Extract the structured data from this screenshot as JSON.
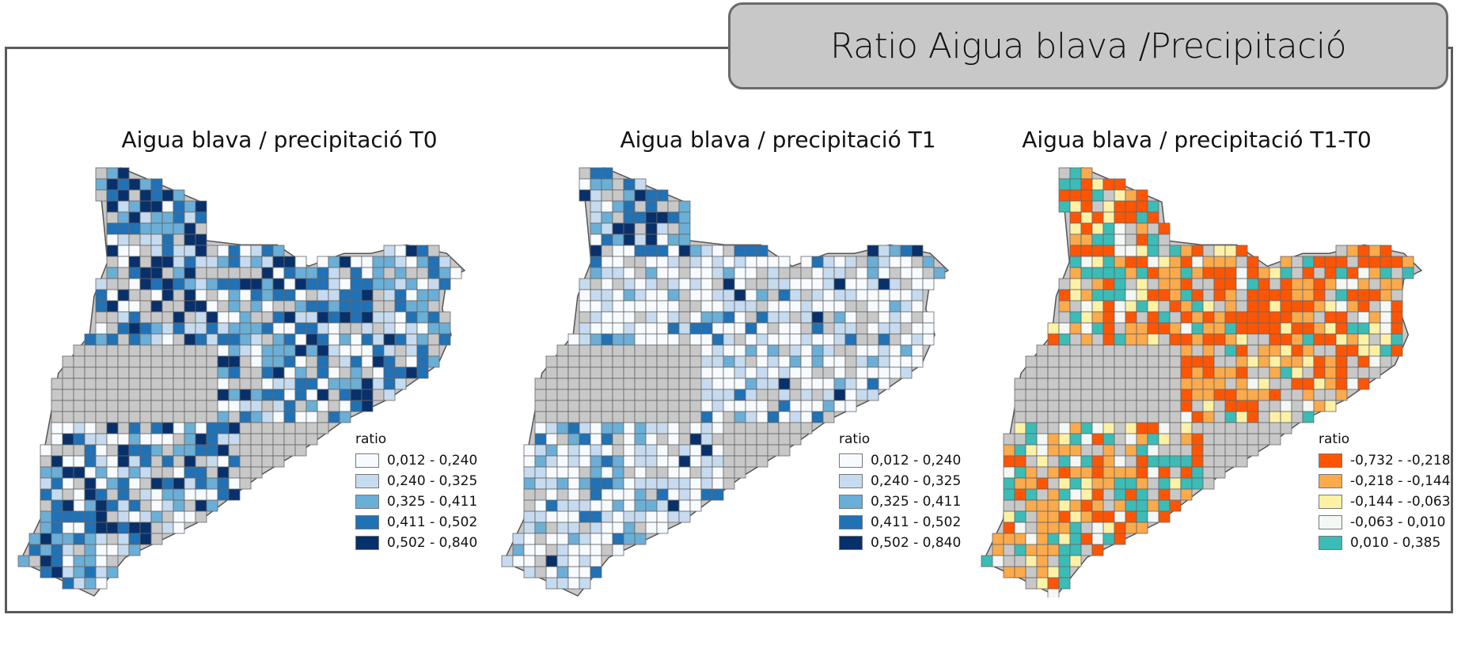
{
  "header": {
    "title": "Ratio Aigua blava /Precipitació"
  },
  "nodata_color": "#c8c8c8",
  "maps": [
    {
      "title": "Aigua blava / precipitació T0",
      "legend_title": "ratio",
      "classes": [
        {
          "label": "0,012 - 0,240",
          "color": "#f7fbff"
        },
        {
          "label": "0,240 - 0,325",
          "color": "#c6dbef"
        },
        {
          "label": "0,325 - 0,411",
          "color": "#6baed6"
        },
        {
          "label": "0,411 - 0,502",
          "color": "#2171b5"
        },
        {
          "label": "0,502 - 0,840",
          "color": "#08306b"
        }
      ]
    },
    {
      "title": "Aigua blava / precipitació T1",
      "legend_title": "ratio",
      "classes": [
        {
          "label": "0,012 - 0,240",
          "color": "#f7fbff"
        },
        {
          "label": "0,240 - 0,325",
          "color": "#c6dbef"
        },
        {
          "label": "0,325 - 0,411",
          "color": "#6baed6"
        },
        {
          "label": "0,411 - 0,502",
          "color": "#2171b5"
        },
        {
          "label": "0,502 - 0,840",
          "color": "#08306b"
        }
      ]
    },
    {
      "title": "Aigua blava / precipitació T1-T0",
      "legend_title": "ratio",
      "classes": [
        {
          "label": "-0,732 - -0,218",
          "color": "#fe5504"
        },
        {
          "label": "-0,218 - -0,144",
          "color": "#fbaa4c"
        },
        {
          "label": "-0,144 - -0,063",
          "color": "#fdf1a6"
        },
        {
          "label": "-0,063 - 0,010",
          "color": "#f4f8f5"
        },
        {
          "label": "0,010 - 0,385",
          "color": "#3bbcb6"
        }
      ]
    }
  ]
}
